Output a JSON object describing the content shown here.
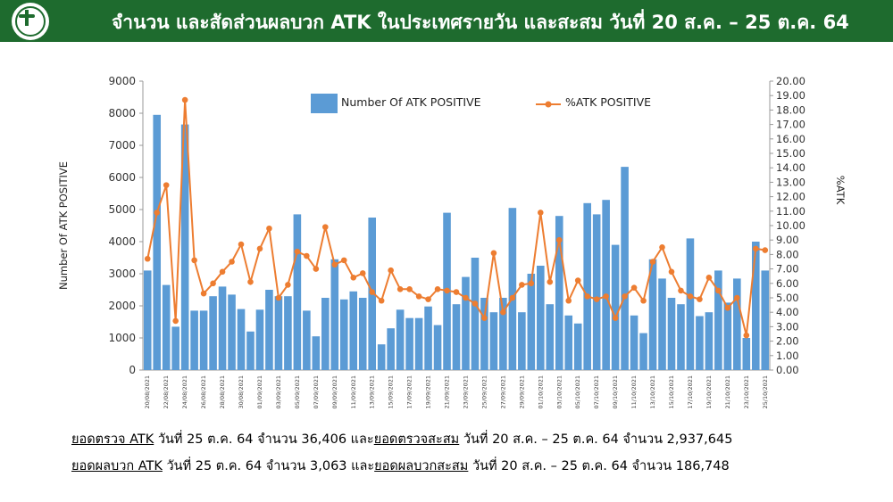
{
  "header": {
    "title": "จำนวน และสัดส่วนผลบวก ATK ในประเทศรายวัน และสะสม วันที่ 20 ส.ค. – 25 ต.ค. 64",
    "logo_icon": "ministry-seal-icon"
  },
  "colors": {
    "header_bg": "#1e6b2e",
    "bar": "#5b9bd5",
    "line": "#ed7d31"
  },
  "chart_data": {
    "type": "bar",
    "x": [
      "20/08/2021",
      "21/08/2021",
      "22/08/2021",
      "23/08/2021",
      "24/08/2021",
      "25/08/2021",
      "26/08/2021",
      "27/08/2021",
      "28/08/2021",
      "29/08/2021",
      "30/08/2021",
      "31/08/2021",
      "01/09/2021",
      "02/09/2021",
      "03/09/2021",
      "04/09/2021",
      "05/09/2021",
      "06/09/2021",
      "07/09/2021",
      "08/09/2021",
      "09/09/2021",
      "10/09/2021",
      "11/09/2021",
      "12/09/2021",
      "13/09/2021",
      "14/09/2021",
      "15/09/2021",
      "16/09/2021",
      "17/09/2021",
      "18/09/2021",
      "19/09/2021",
      "20/09/2021",
      "21/09/2021",
      "22/09/2021",
      "23/09/2021",
      "24/09/2021",
      "25/09/2021",
      "26/09/2021",
      "27/09/2021",
      "28/09/2021",
      "29/09/2021",
      "30/09/2021",
      "01/10/2021",
      "02/10/2021",
      "03/10/2021",
      "04/10/2021",
      "05/10/2021",
      "06/10/2021",
      "07/10/2021",
      "08/10/2021",
      "09/10/2021",
      "10/10/2021",
      "11/10/2021",
      "12/10/2021",
      "13/10/2021",
      "14/10/2021",
      "15/10/2021",
      "16/10/2021",
      "17/10/2021",
      "18/10/2021",
      "19/10/2021",
      "20/10/2021",
      "21/10/2021",
      "22/10/2021",
      "23/10/2021",
      "24/10/2021",
      "25/10/2021"
    ],
    "x_tick_labels": [
      "20/08/2021",
      "22/08/2021",
      "24/08/2021",
      "26/08/2021",
      "28/08/2021",
      "30/08/2021",
      "01/09/2021",
      "03/09/2021",
      "05/09/2021",
      "07/09/2021",
      "09/09/2021",
      "11/09/2021",
      "13/09/2021",
      "15/09/2021",
      "17/09/2021",
      "19/09/2021",
      "21/09/2021",
      "23/09/2021",
      "25/09/2021",
      "27/09/2021",
      "29/09/2021",
      "01/10/2021",
      "03/10/2021",
      "05/10/2021",
      "07/10/2021",
      "09/10/2021",
      "11/10/2021",
      "13/10/2021",
      "15/10/2021",
      "17/10/2021",
      "19/10/2021",
      "21/10/2021",
      "23/10/2021",
      "25/10/2021"
    ],
    "series": [
      {
        "name": "Number Of ATK POSITIVE",
        "kind": "bar",
        "axis": "left",
        "values": [
          3100,
          7950,
          2650,
          1350,
          7650,
          1850,
          1850,
          2300,
          2600,
          2350,
          1900,
          1200,
          1880,
          2500,
          2300,
          2300,
          4850,
          1850,
          1050,
          2250,
          3450,
          2200,
          2450,
          2250,
          4750,
          800,
          1300,
          1880,
          1620,
          1620,
          1980,
          1400,
          4900,
          2050,
          2900,
          3500,
          2250,
          1800,
          2250,
          5050,
          1800,
          3000,
          3250,
          2050,
          4800,
          1700,
          1450,
          5200,
          4850,
          5300,
          3900,
          6330,
          1700,
          1150,
          3450,
          2850,
          2250,
          2050,
          4100,
          1680,
          1800,
          3100,
          2100,
          2850,
          1000,
          4000,
          3100
        ]
      },
      {
        "name": "%ATK POSITIVE",
        "kind": "line",
        "axis": "right",
        "values": [
          7.7,
          10.9,
          12.8,
          3.4,
          18.7,
          7.6,
          5.3,
          6.0,
          6.8,
          7.5,
          8.7,
          6.1,
          8.4,
          9.8,
          5.0,
          5.9,
          8.2,
          7.9,
          7.0,
          9.9,
          7.3,
          7.6,
          6.4,
          6.7,
          5.4,
          4.8,
          6.9,
          5.6,
          5.6,
          5.1,
          4.9,
          5.6,
          5.5,
          5.4,
          5.0,
          4.6,
          3.6,
          8.1,
          4.0,
          5.0,
          5.9,
          6.0,
          10.9,
          6.1,
          9.0,
          4.8,
          6.2,
          5.1,
          4.9,
          5.1,
          3.6,
          5.1,
          5.7,
          4.8,
          7.5,
          8.5,
          6.8,
          5.5,
          5.1,
          4.9,
          6.4,
          5.5,
          4.3,
          5.0,
          2.4,
          8.4,
          8.3
        ]
      }
    ],
    "y_left": {
      "label": "Number Of ATK POSITIVE",
      "min": 0,
      "max": 9000,
      "ticks": [
        "0",
        "1000",
        "2000",
        "3000",
        "4000",
        "5000",
        "6000",
        "7000",
        "8000",
        "9000"
      ]
    },
    "y_right": {
      "label": "%ATK",
      "min": 0,
      "max": 20,
      "ticks": [
        "0.00",
        "1.00",
        "2.00",
        "3.00",
        "4.00",
        "5.00",
        "6.00",
        "7.00",
        "8.00",
        "9.00",
        "10.00",
        "11.00",
        "12.00",
        "13.00",
        "14.00",
        "15.00",
        "16.00",
        "17.00",
        "18.00",
        "19.00",
        "20.00"
      ]
    },
    "legend": {
      "placement": "top-center",
      "entries": [
        "Number Of ATK POSITIVE",
        "%ATK POSITIVE"
      ]
    },
    "grid": false
  },
  "footer": {
    "line1": {
      "u1": "ยอดตรวจ ATK",
      "t1": " วันที่ 25 ต.ค. 64 จำนวน 36,406 และ",
      "u2": "ยอดตรวจสะสม",
      "t2": " วันที่ 20 ส.ค. – 25 ต.ค. 64 จำนวน 2,937,645"
    },
    "line2": {
      "u1": "ยอดผลบวก ATK",
      "t1": " วันที่ 25 ต.ค. 64 จำนวน 3,063 และ",
      "u2": "ยอดผลบวกสะสม",
      "t2": " วันที่ 20 ส.ค. – 25 ต.ค. 64 จำนวน 186,748"
    }
  }
}
